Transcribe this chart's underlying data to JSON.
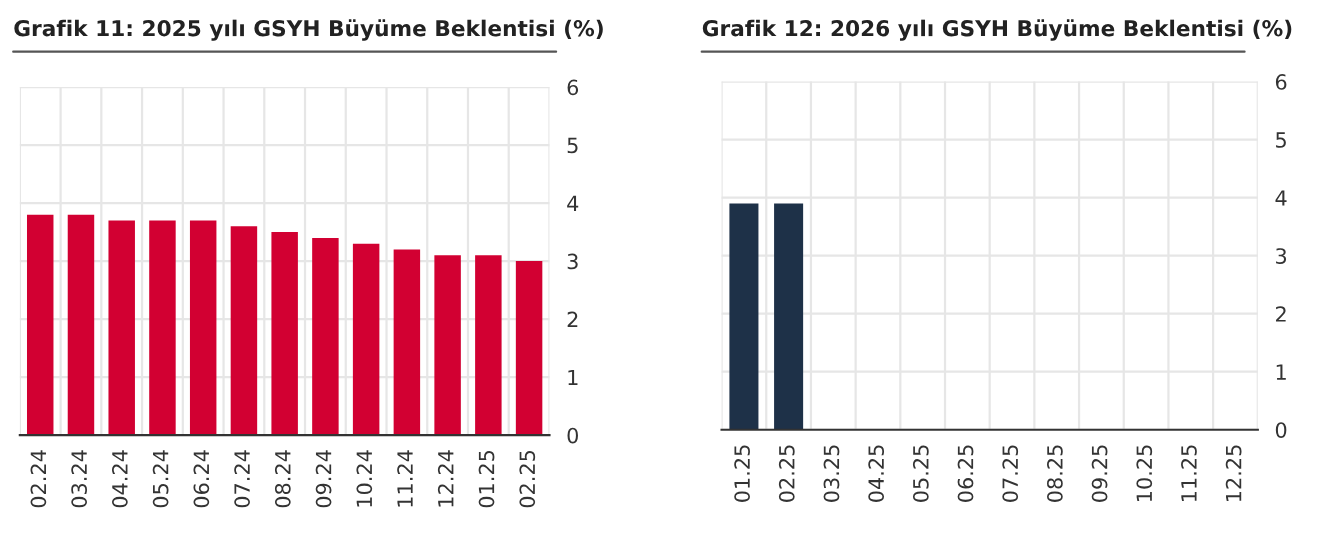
{
  "chart_data": [
    {
      "type": "bar",
      "title": "Grafik 11: 2025 yılı GSYH Büyüme Beklentisi (%)",
      "categories": [
        "02.24",
        "03.24",
        "04.24",
        "05.24",
        "06.24",
        "07.24",
        "08.24",
        "09.24",
        "10.24",
        "11.24",
        "12.24",
        "01.25",
        "02.25"
      ],
      "values": [
        3.8,
        3.8,
        3.7,
        3.7,
        3.7,
        3.6,
        3.5,
        3.4,
        3.3,
        3.2,
        3.1,
        3.1,
        3.0
      ],
      "color": "#d20032",
      "ylim": [
        0,
        6
      ],
      "yticks": [
        0,
        1,
        2,
        3,
        4,
        5,
        6
      ],
      "grid": true,
      "legend": false
    },
    {
      "type": "bar",
      "title": "Grafik 12: 2026 yılı GSYH Büyüme Beklentisi (%)",
      "categories": [
        "01.25",
        "02.25",
        "03.25",
        "04.25",
        "05.25",
        "06.25",
        "07.25",
        "08.25",
        "09.25",
        "10.25",
        "11.25",
        "12.25"
      ],
      "values": [
        3.9,
        3.9,
        null,
        null,
        null,
        null,
        null,
        null,
        null,
        null,
        null,
        null
      ],
      "color": "#1e3148",
      "ylim": [
        0,
        6
      ],
      "yticks": [
        0,
        1,
        2,
        3,
        4,
        5,
        6
      ],
      "grid": true,
      "legend": false
    }
  ]
}
